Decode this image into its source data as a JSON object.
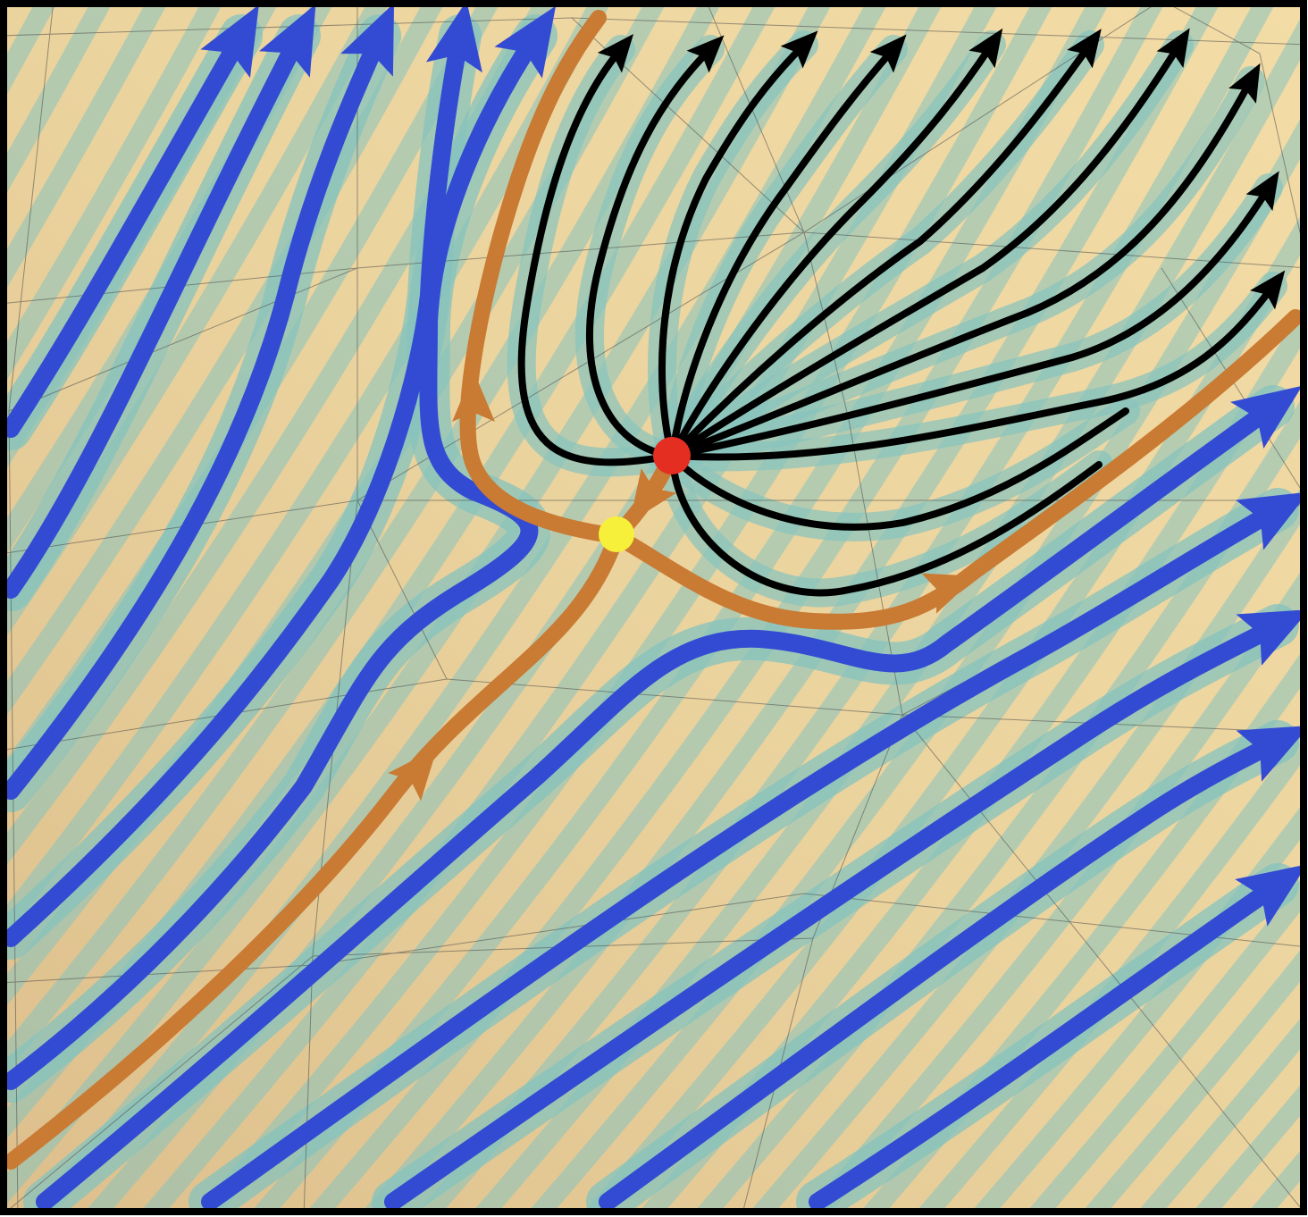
{
  "colors": {
    "background_sand": "#EBD39E",
    "background_sand_light": "#F3DCA6",
    "background_shadow": "#DDBF8C",
    "teal_band": "#86C3BE",
    "blue_flow": "#334BD3",
    "orange_separatrix": "#C97A33",
    "black_flow": "#000000",
    "mesh_line": "#4A4A4A",
    "source_node": "#E52E22",
    "saddle_point": "#F6F03A",
    "frame": "#000000"
  },
  "markers": {
    "source": {
      "name": "source-point",
      "color": "#E52E22"
    },
    "saddle": {
      "name": "saddle-point",
      "color": "#F6F03A"
    }
  }
}
